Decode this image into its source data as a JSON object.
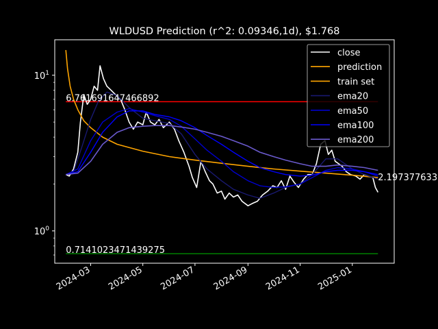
{
  "chart_data": {
    "type": "line",
    "title": "WLDUSD Prediction (r^2: 0.09346,1d), $1.768",
    "xlabel": "",
    "ylabel": "",
    "yscale": "log",
    "xlim": [
      "2024-01-19",
      "2025-02-19"
    ],
    "ylim": [
      0.62,
      16.9
    ],
    "grid": false,
    "legend_position": "top-right",
    "x_ticks": [
      "2024-03",
      "2024-05",
      "2024-07",
      "2024-09",
      "2024-11",
      "2025-01"
    ],
    "y_ticks": [
      {
        "value": 1,
        "label": "10^0"
      },
      {
        "value": 10,
        "label": "10^1"
      }
    ],
    "hlines": [
      {
        "value": 6.761691647466892,
        "label": "6.761691647466892",
        "color": "#ff0000"
      },
      {
        "value": 0.7141023471439275,
        "label": "0.7141023471439275",
        "color": "#008000"
      }
    ],
    "end_annotation": {
      "value": 2.197377633,
      "label": "2.197377633"
    },
    "series": [
      {
        "name": "close",
        "color": "#ffffff",
        "width": 1.6,
        "x": [
          "2024-02-01",
          "2024-02-05",
          "2024-02-10",
          "2024-02-15",
          "2024-02-18",
          "2024-02-22",
          "2024-02-26",
          "2024-03-01",
          "2024-03-05",
          "2024-03-09",
          "2024-03-12",
          "2024-03-16",
          "2024-03-20",
          "2024-03-25",
          "2024-03-30",
          "2024-04-05",
          "2024-04-10",
          "2024-04-15",
          "2024-04-20",
          "2024-04-25",
          "2024-05-01",
          "2024-05-05",
          "2024-05-10",
          "2024-05-15",
          "2024-05-20",
          "2024-05-25",
          "2024-06-01",
          "2024-06-07",
          "2024-06-12",
          "2024-06-18",
          "2024-06-24",
          "2024-06-28",
          "2024-07-03",
          "2024-07-08",
          "2024-07-13",
          "2024-07-18",
          "2024-07-22",
          "2024-07-27",
          "2024-08-01",
          "2024-08-05",
          "2024-08-10",
          "2024-08-15",
          "2024-08-20",
          "2024-08-25",
          "2024-09-01",
          "2024-09-06",
          "2024-09-12",
          "2024-09-18",
          "2024-09-24",
          "2024-09-30",
          "2024-10-05",
          "2024-10-10",
          "2024-10-15",
          "2024-10-20",
          "2024-10-25",
          "2024-10-30",
          "2024-11-05",
          "2024-11-10",
          "2024-11-15",
          "2024-11-20",
          "2024-11-25",
          "2024-11-30",
          "2024-12-04",
          "2024-12-08",
          "2024-12-12",
          "2024-12-16",
          "2024-12-20",
          "2024-12-25",
          "2024-12-30",
          "2025-01-05",
          "2025-01-10",
          "2025-01-15",
          "2025-01-20",
          "2025-01-25",
          "2025-01-28",
          "2025-01-31"
        ],
        "y": [
          2.3,
          2.25,
          2.5,
          3.2,
          5.0,
          7.5,
          6.5,
          7.0,
          8.5,
          8.0,
          11.5,
          9.5,
          8.5,
          8.0,
          7.5,
          7.0,
          6.0,
          5.0,
          4.5,
          5.0,
          4.8,
          5.8,
          5.0,
          4.8,
          5.2,
          4.6,
          5.0,
          4.5,
          3.8,
          3.2,
          2.6,
          2.2,
          1.9,
          2.8,
          2.4,
          2.1,
          2.0,
          1.75,
          1.8,
          1.6,
          1.75,
          1.65,
          1.7,
          1.55,
          1.45,
          1.5,
          1.55,
          1.7,
          1.8,
          1.95,
          1.9,
          2.1,
          1.85,
          2.25,
          2.05,
          1.9,
          2.15,
          2.3,
          2.3,
          2.7,
          3.6,
          3.8,
          3.1,
          3.3,
          2.8,
          2.7,
          2.6,
          2.4,
          2.3,
          2.25,
          2.15,
          2.3,
          2.25,
          2.2,
          1.9,
          1.77
        ]
      },
      {
        "name": "prediction",
        "color": "#ffa500",
        "width": 1.6,
        "x": [
          "2024-02-01",
          "2024-02-03",
          "2024-02-06",
          "2024-02-10",
          "2024-02-15",
          "2024-02-22",
          "2024-03-01",
          "2024-03-15",
          "2024-04-01",
          "2024-05-01",
          "2024-06-01",
          "2024-07-01",
          "2024-08-01",
          "2024-09-01",
          "2024-10-01",
          "2024-11-01",
          "2024-12-01",
          "2025-01-01",
          "2025-01-31"
        ],
        "y": [
          14.5,
          11.0,
          8.5,
          7.0,
          6.0,
          5.1,
          4.6,
          4.0,
          3.6,
          3.25,
          3.0,
          2.85,
          2.72,
          2.6,
          2.5,
          2.42,
          2.35,
          2.28,
          2.2
        ]
      },
      {
        "name": "train set",
        "color": "#ffa500",
        "width": 1.6,
        "x": [],
        "y": []
      },
      {
        "name": "ema20",
        "color": "#191970",
        "width": 1.4,
        "x": [
          "2024-02-01",
          "2024-02-10",
          "2024-02-20",
          "2024-03-01",
          "2024-03-10",
          "2024-03-20",
          "2024-04-01",
          "2024-04-15",
          "2024-05-01",
          "2024-05-15",
          "2024-06-01",
          "2024-06-15",
          "2024-07-01",
          "2024-07-15",
          "2024-08-01",
          "2024-08-15",
          "2024-09-01",
          "2024-09-15",
          "2024-10-01",
          "2024-10-15",
          "2024-11-01",
          "2024-11-15",
          "2024-12-01",
          "2024-12-15",
          "2025-01-01",
          "2025-01-15",
          "2025-01-31"
        ],
        "y": [
          2.3,
          2.4,
          3.5,
          5.2,
          6.8,
          7.8,
          7.4,
          6.2,
          5.3,
          5.1,
          4.9,
          4.2,
          3.1,
          2.5,
          2.1,
          1.85,
          1.7,
          1.62,
          1.75,
          1.9,
          2.0,
          2.3,
          2.9,
          2.9,
          2.5,
          2.3,
          2.15
        ]
      },
      {
        "name": "ema50",
        "color": "#0000cd",
        "width": 1.4,
        "x": [
          "2024-02-01",
          "2024-02-15",
          "2024-03-01",
          "2024-03-15",
          "2024-04-01",
          "2024-04-15",
          "2024-05-01",
          "2024-05-15",
          "2024-06-01",
          "2024-06-15",
          "2024-07-01",
          "2024-07-15",
          "2024-08-01",
          "2024-08-15",
          "2024-09-01",
          "2024-09-15",
          "2024-10-01",
          "2024-10-15",
          "2024-11-01",
          "2024-11-15",
          "2024-12-01",
          "2024-12-15",
          "2025-01-01",
          "2025-01-15",
          "2025-01-31"
        ],
        "y": [
          2.3,
          2.5,
          3.8,
          5.0,
          5.8,
          6.1,
          5.8,
          5.5,
          5.2,
          4.7,
          3.9,
          3.3,
          2.8,
          2.4,
          2.1,
          1.95,
          1.9,
          1.92,
          2.0,
          2.2,
          2.45,
          2.55,
          2.5,
          2.4,
          2.25
        ]
      },
      {
        "name": "ema100",
        "color": "#0000ff",
        "width": 1.4,
        "x": [
          "2024-02-01",
          "2024-02-15",
          "2024-03-01",
          "2024-03-15",
          "2024-04-01",
          "2024-04-15",
          "2024-05-01",
          "2024-05-15",
          "2024-06-01",
          "2024-06-15",
          "2024-07-01",
          "2024-07-15",
          "2024-08-01",
          "2024-08-15",
          "2024-09-01",
          "2024-09-15",
          "2024-10-01",
          "2024-10-15",
          "2024-11-01",
          "2024-11-15",
          "2024-12-01",
          "2024-12-15",
          "2025-01-01",
          "2025-01-15",
          "2025-01-31"
        ],
        "y": [
          2.3,
          2.4,
          3.2,
          4.3,
          5.4,
          5.9,
          5.9,
          5.6,
          5.4,
          5.1,
          4.6,
          4.1,
          3.6,
          3.2,
          2.8,
          2.55,
          2.4,
          2.3,
          2.25,
          2.28,
          2.4,
          2.45,
          2.45,
          2.4,
          2.3
        ]
      },
      {
        "name": "ema200",
        "color": "#6a5acd",
        "width": 1.6,
        "x": [
          "2024-02-01",
          "2024-02-15",
          "2024-03-01",
          "2024-03-15",
          "2024-04-01",
          "2024-04-15",
          "2024-05-01",
          "2024-05-15",
          "2024-06-01",
          "2024-06-15",
          "2024-07-01",
          "2024-07-15",
          "2024-08-01",
          "2024-08-15",
          "2024-09-01",
          "2024-09-15",
          "2024-10-01",
          "2024-10-15",
          "2024-11-01",
          "2024-11-15",
          "2024-12-01",
          "2024-12-15",
          "2025-01-01",
          "2025-01-15",
          "2025-01-31"
        ],
        "y": [
          2.3,
          2.35,
          2.8,
          3.6,
          4.3,
          4.6,
          4.7,
          4.75,
          4.75,
          4.65,
          4.5,
          4.3,
          4.05,
          3.8,
          3.5,
          3.2,
          3.0,
          2.85,
          2.7,
          2.6,
          2.6,
          2.65,
          2.6,
          2.55,
          2.45
        ]
      }
    ]
  }
}
